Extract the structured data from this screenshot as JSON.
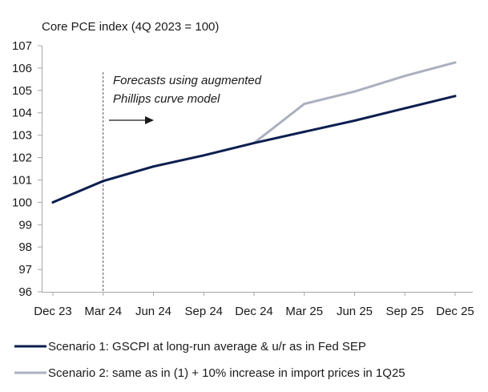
{
  "chart_data": {
    "type": "line",
    "title": "Core PCE index (4Q 2023 = 100)",
    "xlabel": "",
    "ylabel": "",
    "categories": [
      "Dec 23",
      "Mar 24",
      "Jun 24",
      "Sep 24",
      "Dec 24",
      "Mar 25",
      "Jun 25",
      "Sep 25",
      "Dec 25"
    ],
    "ylim": [
      96,
      107
    ],
    "yticks": [
      "96",
      "97",
      "98",
      "99",
      "100",
      "101",
      "102",
      "103",
      "104",
      "105",
      "106",
      "107"
    ],
    "grid": false,
    "legend_position": "bottom",
    "series": [
      {
        "name": "Scenario 1: GSCPI at long-run average & u/r as in Fed SEP",
        "color": "#0d1f4f",
        "values": [
          100.0,
          100.95,
          101.6,
          102.1,
          102.65,
          103.15,
          103.65,
          104.2,
          104.75
        ]
      },
      {
        "name": "Scenario 2: same as in (1) + 10% increase in import prices in 1Q25",
        "color": "#aab0bf",
        "values": [
          100.0,
          100.95,
          101.6,
          102.1,
          102.65,
          104.4,
          104.95,
          105.65,
          106.25
        ]
      }
    ],
    "annotation": {
      "lines": [
        "Forecasts using augmented",
        "Phillips curve model"
      ],
      "divider_at": "Mar 24"
    }
  }
}
